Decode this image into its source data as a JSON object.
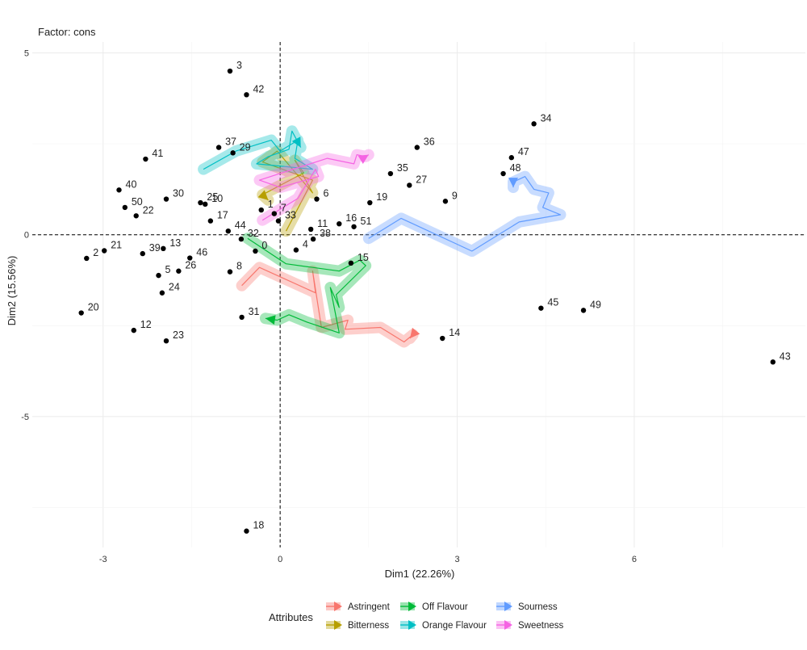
{
  "chart_data": {
    "type": "scatter",
    "title": "Factor: cons",
    "xlabel": "Dim1 (22.26%)",
    "ylabel": "Dim2 (15.56%)",
    "xlim": [
      -4.2,
      8.9
    ],
    "ylim": [
      -8.6,
      5.3
    ],
    "xticks": [
      -3,
      0,
      3,
      6
    ],
    "yticks": [
      5,
      0,
      -5
    ],
    "grid": true,
    "reference_lines": {
      "x": 0,
      "y": 0
    },
    "points": [
      {
        "label": "3",
        "x": -0.85,
        "y": 4.5
      },
      {
        "label": "42",
        "x": -0.57,
        "y": 3.85
      },
      {
        "label": "34",
        "x": 4.3,
        "y": 3.05
      },
      {
        "label": "36",
        "x": 2.32,
        "y": 2.4
      },
      {
        "label": "47",
        "x": 3.92,
        "y": 2.12
      },
      {
        "label": "41",
        "x": -2.28,
        "y": 2.08
      },
      {
        "label": "37",
        "x": -1.04,
        "y": 2.4
      },
      {
        "label": "29",
        "x": -0.8,
        "y": 2.25
      },
      {
        "label": "35",
        "x": 1.87,
        "y": 1.68
      },
      {
        "label": "48",
        "x": 3.78,
        "y": 1.68
      },
      {
        "label": "27",
        "x": 2.19,
        "y": 1.36
      },
      {
        "label": "40",
        "x": -2.73,
        "y": 1.23
      },
      {
        "label": "30",
        "x": -1.93,
        "y": 0.98
      },
      {
        "label": "25",
        "x": -1.35,
        "y": 0.88
      },
      {
        "label": "10",
        "x": -1.27,
        "y": 0.84
      },
      {
        "label": "6",
        "x": 0.62,
        "y": 0.98
      },
      {
        "label": "9",
        "x": 2.8,
        "y": 0.92
      },
      {
        "label": "19",
        "x": 1.52,
        "y": 0.88
      },
      {
        "label": "50",
        "x": -2.63,
        "y": 0.75
      },
      {
        "label": "1",
        "x": -0.32,
        "y": 0.68
      },
      {
        "label": "22",
        "x": -2.44,
        "y": 0.52
      },
      {
        "label": "7",
        "x": -0.1,
        "y": 0.58
      },
      {
        "label": "16",
        "x": 1.0,
        "y": 0.3
      },
      {
        "label": "33",
        "x": -0.03,
        "y": 0.38
      },
      {
        "label": "11",
        "x": 0.52,
        "y": 0.15
      },
      {
        "label": "51",
        "x": 1.25,
        "y": 0.22
      },
      {
        "label": "17",
        "x": -1.18,
        "y": 0.38
      },
      {
        "label": "44",
        "x": -0.88,
        "y": 0.1
      },
      {
        "label": "21",
        "x": -2.98,
        "y": -0.44
      },
      {
        "label": "13",
        "x": -1.98,
        "y": -0.38
      },
      {
        "label": "2",
        "x": -3.28,
        "y": -0.65
      },
      {
        "label": "39",
        "x": -2.33,
        "y": -0.52
      },
      {
        "label": "46",
        "x": -1.53,
        "y": -0.64
      },
      {
        "label": "32",
        "x": -0.66,
        "y": -0.12
      },
      {
        "label": "38",
        "x": 0.56,
        "y": -0.12
      },
      {
        "label": "4",
        "x": 0.27,
        "y": -0.42
      },
      {
        "label": "15",
        "x": 1.2,
        "y": -0.78
      },
      {
        "label": "8",
        "x": -0.85,
        "y": -1.02
      },
      {
        "label": "26",
        "x": -1.72,
        "y": -1.0
      },
      {
        "label": "5",
        "x": -2.06,
        "y": -1.12
      },
      {
        "label": "24",
        "x": -2.0,
        "y": -1.6
      },
      {
        "label": "45",
        "x": 4.42,
        "y": -2.02
      },
      {
        "label": "49",
        "x": 5.14,
        "y": -2.08
      },
      {
        "label": "20",
        "x": -3.37,
        "y": -2.15
      },
      {
        "label": "31",
        "x": -0.65,
        "y": -2.27
      },
      {
        "label": "12",
        "x": -2.48,
        "y": -2.63
      },
      {
        "label": "23",
        "x": -1.93,
        "y": -2.92
      },
      {
        "label": "14",
        "x": 2.75,
        "y": -2.85
      },
      {
        "label": "43",
        "x": 8.35,
        "y": -3.5
      },
      {
        "label": "18",
        "x": -0.57,
        "y": -8.15
      },
      {
        "label": "0",
        "x": -0.42,
        "y": -0.45
      }
    ],
    "series": [
      {
        "name": "Astringent",
        "color": "#F8766D",
        "points": [
          [
            -0.65,
            -1.4
          ],
          [
            -0.35,
            -0.9
          ],
          [
            0.6,
            -1.6
          ],
          [
            0.55,
            -1.0
          ],
          [
            0.7,
            -2.55
          ],
          [
            1.15,
            -2.35
          ],
          [
            1.1,
            -2.6
          ],
          [
            1.7,
            -2.55
          ],
          [
            2.1,
            -2.95
          ],
          [
            2.25,
            -2.75
          ],
          [
            2.2,
            -2.85
          ]
        ]
      },
      {
        "name": "Bitterness",
        "color": "#B79F00",
        "points": [
          [
            0.1,
            0.1
          ],
          [
            0.55,
            1.5
          ],
          [
            -0.3,
            2.0
          ],
          [
            -0.05,
            2.3
          ],
          [
            0.55,
            1.15
          ],
          [
            0.25,
            2.05
          ],
          [
            0.4,
            1.7
          ],
          [
            -0.3,
            1.1
          ],
          [
            -0.2,
            0.95
          ]
        ]
      },
      {
        "name": "Off Flavour",
        "color": "#00BA38",
        "points": [
          [
            -0.55,
            -0.1
          ],
          [
            0.1,
            -0.8
          ],
          [
            1.0,
            -1.0
          ],
          [
            1.35,
            -0.7
          ],
          [
            1.45,
            -0.85
          ],
          [
            0.95,
            -1.65
          ],
          [
            1.0,
            -2.0
          ],
          [
            0.85,
            -1.45
          ],
          [
            1.0,
            -2.7
          ],
          [
            0.45,
            -2.4
          ],
          [
            0.15,
            -2.2
          ],
          [
            -0.05,
            -2.35
          ],
          [
            -0.25,
            -2.3
          ]
        ]
      },
      {
        "name": "Orange Flavour",
        "color": "#00BFC4",
        "points": [
          [
            -1.3,
            1.8
          ],
          [
            -0.75,
            2.3
          ],
          [
            -0.15,
            2.6
          ],
          [
            0.0,
            2.3
          ],
          [
            0.3,
            2.6
          ],
          [
            0.25,
            2.1
          ],
          [
            0.55,
            1.8
          ],
          [
            -0.4,
            1.95
          ],
          [
            -0.2,
            2.15
          ],
          [
            0.15,
            2.35
          ],
          [
            0.2,
            2.85
          ],
          [
            0.35,
            2.4
          ]
        ]
      },
      {
        "name": "Sourness",
        "color": "#619CFF",
        "points": [
          [
            1.5,
            -0.1
          ],
          [
            2.05,
            0.45
          ],
          [
            3.25,
            -0.45
          ],
          [
            3.65,
            -0.05
          ],
          [
            4.05,
            0.35
          ],
          [
            4.75,
            0.55
          ],
          [
            4.45,
            0.75
          ],
          [
            4.55,
            1.15
          ],
          [
            4.3,
            1.25
          ],
          [
            4.15,
            1.6
          ],
          [
            3.95,
            1.45
          ],
          [
            3.95,
            1.3
          ]
        ]
      },
      {
        "name": "Sweetness",
        "color": "#F564E3",
        "points": [
          [
            -0.3,
            0.4
          ],
          [
            0.3,
            1.0
          ],
          [
            0.6,
            1.8
          ],
          [
            0.65,
            1.6
          ],
          [
            0.0,
            1.3
          ],
          [
            -0.35,
            1.5
          ],
          [
            0.8,
            2.1
          ],
          [
            1.25,
            1.95
          ],
          [
            1.3,
            2.2
          ],
          [
            1.45,
            2.15
          ],
          [
            1.5,
            2.2
          ]
        ]
      }
    ]
  },
  "legend": {
    "title": "Attributes",
    "items": [
      {
        "name": "Astringent",
        "color": "#F8766D"
      },
      {
        "name": "Off Flavour",
        "color": "#00BA38"
      },
      {
        "name": "Sourness",
        "color": "#619CFF"
      },
      {
        "name": "Bitterness",
        "color": "#B79F00"
      },
      {
        "name": "Orange Flavour",
        "color": "#00BFC4"
      },
      {
        "name": "Sweetness",
        "color": "#F564E3"
      }
    ]
  }
}
